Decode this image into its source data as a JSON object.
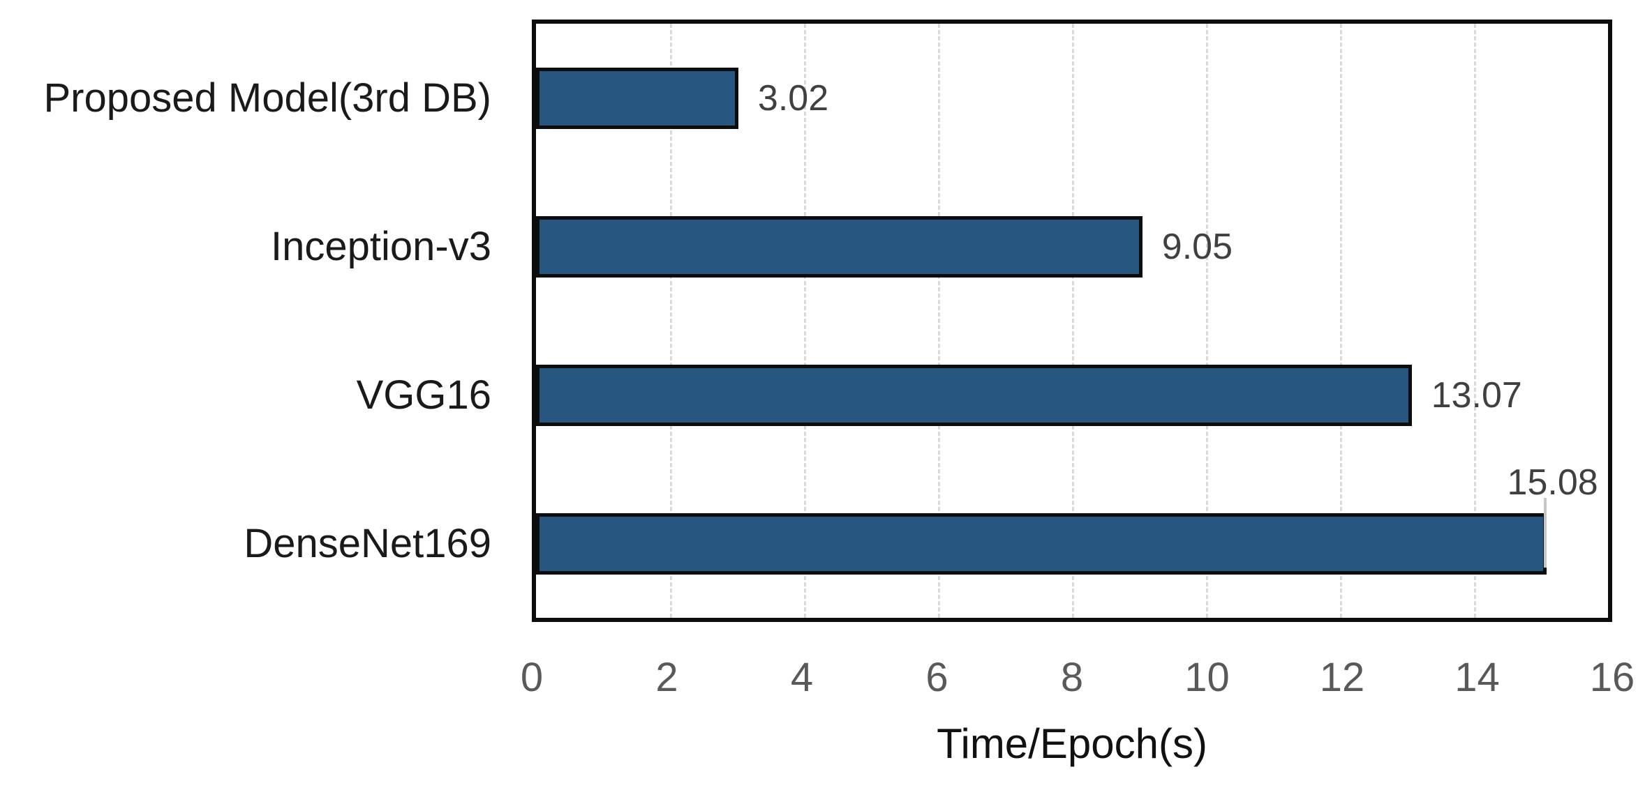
{
  "chart_data": {
    "type": "bar",
    "orientation": "horizontal",
    "categories": [
      "Proposed Model(3rd DB)",
      "Inception-v3",
      "VGG16",
      "DenseNet169"
    ],
    "values": [
      3.02,
      9.05,
      13.07,
      15.08
    ],
    "value_labels": [
      "3.02",
      "9.05",
      "13.07",
      "15.08"
    ],
    "value_label_positions": [
      "right",
      "right",
      "right",
      "above-end"
    ],
    "xlabel": "Time/Epoch(s)",
    "xlim": [
      0,
      16
    ],
    "x_ticks": [
      0,
      2,
      4,
      6,
      8,
      10,
      12,
      14,
      16
    ],
    "grid": "vertical-dashed",
    "legend": "none",
    "colors": {
      "bar_fill": "#275680",
      "bar_border": "#0d0d0d",
      "plot_border": "#0d0d0d",
      "gridline": "#d9d9d9",
      "value_label": "#404040",
      "tick_label": "#595959",
      "category_label": "#1a1a1a",
      "axis_title": "#111111"
    }
  }
}
